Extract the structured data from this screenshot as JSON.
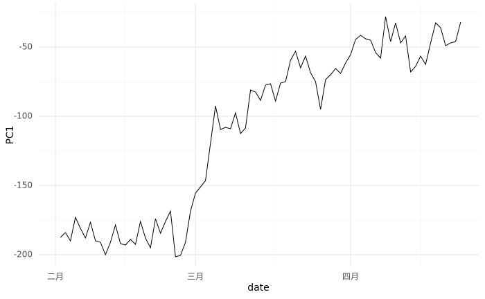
{
  "chart_data": {
    "type": "line",
    "x_label": "date",
    "y_label": "PC1",
    "categories": [
      "二月",
      null,
      null,
      null,
      null,
      null,
      null,
      null,
      null,
      null,
      null,
      null,
      null,
      null,
      null,
      null,
      null,
      null,
      null,
      null,
      null,
      null,
      null,
      null,
      null,
      null,
      null,
      null,
      "三月",
      null,
      null,
      null,
      null,
      null,
      null,
      null,
      null,
      null,
      null,
      null,
      null,
      null,
      null,
      null,
      null,
      null,
      null,
      null,
      null,
      null,
      null,
      null,
      null,
      null,
      null,
      null,
      null,
      null,
      null,
      "四月",
      null,
      null,
      null,
      null,
      null,
      null,
      null,
      null,
      null,
      null,
      null,
      null,
      null,
      null,
      null,
      null,
      null,
      null,
      null,
      null,
      null,
      null
    ],
    "series": [
      {
        "color": "#000000",
        "values": [
          null,
          -187.5,
          -184,
          -190,
          -173,
          -181,
          -188,
          -176.5,
          -190,
          -191,
          -200,
          -191,
          -178.5,
          -192,
          -193,
          -189,
          -192.5,
          -176,
          -188,
          -195,
          -174,
          -184.5,
          -176,
          -168.5,
          -201.5,
          -200.5,
          -191,
          -168.5,
          -155.5,
          -151,
          -146.5,
          -119.5,
          -92.5,
          -109.5,
          -108,
          -109,
          -97.5,
          -112.5,
          -108.5,
          -81,
          -82.5,
          -88.5,
          -77.5,
          -76.5,
          -89,
          -76,
          -75,
          -59.5,
          -53,
          -65,
          -56.5,
          -68.5,
          -75,
          -95,
          -73.5,
          -70,
          -65.5,
          -69,
          -61.5,
          -55.5,
          -44.5,
          -41.5,
          -44,
          -45,
          -54,
          -58,
          -28,
          -46,
          -32.5,
          -47,
          -42,
          -68,
          -64,
          -56.5,
          -62.5,
          -47,
          -32.5,
          -36,
          -49,
          -47,
          -46,
          -32
        ]
      }
    ],
    "ylim": [
      -208.5,
      -18.5
    ],
    "yticks": [
      -200,
      -150,
      -100,
      -50
    ],
    "grid": true
  }
}
